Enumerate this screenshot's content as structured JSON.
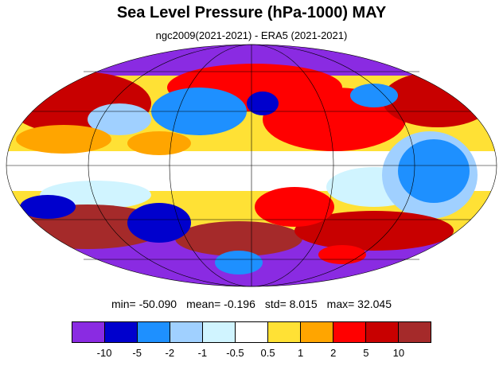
{
  "title": "Sea Level Pressure (hPa-1000) MAY",
  "subtitle": "ngc2009(2021-2021) - ERA5 (2021-2021)",
  "stats": {
    "min": "min= -50.090",
    "mean": "mean= -0.196",
    "std": "std= 8.015",
    "max": "max= 32.045"
  },
  "colorbar": {
    "colors": [
      "#8a2be2",
      "#0000cd",
      "#1e90ff",
      "#a0d0ff",
      "#d0f4ff",
      "#ffffff",
      "#ffe135",
      "#ffa500",
      "#ff0000",
      "#c80000",
      "#a52a2a"
    ],
    "labels": [
      "-10",
      "-5",
      "-2",
      "-1",
      "-0.5",
      "0.5",
      "1",
      "2",
      "5",
      "10"
    ]
  },
  "map": {
    "projection": "mollweide",
    "field": "sea level pressure difference"
  }
}
